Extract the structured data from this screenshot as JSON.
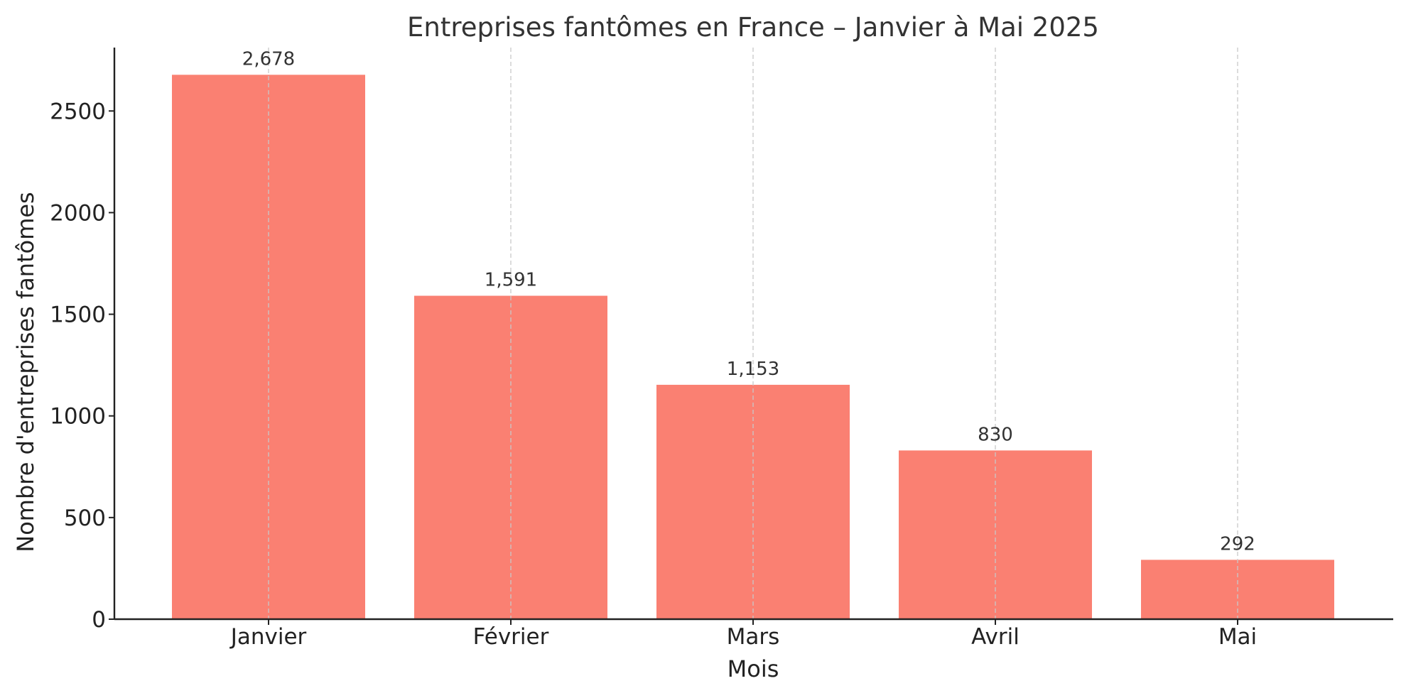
{
  "chart_data": {
    "type": "bar",
    "title": "Entreprises fantômes en France – Janvier à Mai 2025",
    "xlabel": "Mois",
    "ylabel": "Nombre d'entreprises fantômes",
    "categories": [
      "Janvier",
      "Février",
      "Mars",
      "Avril",
      "Mai"
    ],
    "values": [
      2678,
      1591,
      1153,
      830,
      292
    ],
    "data_labels": [
      "2,678",
      "1,591",
      "1,153",
      "830",
      "292"
    ],
    "y_ticks": [
      0,
      500,
      1000,
      1500,
      2000,
      2500
    ],
    "ylim": [
      0,
      2811.9
    ],
    "grid": "vertical dashed lines at categories",
    "bar_color": "#FA8072",
    "legend": "none"
  }
}
